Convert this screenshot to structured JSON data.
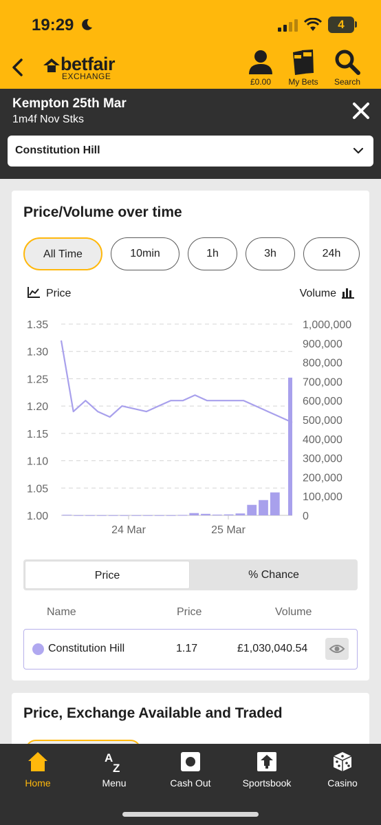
{
  "status_bar": {
    "time": "19:29",
    "battery": "4",
    "icons": [
      "moon-icon",
      "signal-icon",
      "wifi-icon",
      "battery-icon"
    ]
  },
  "header": {
    "logo_word": "betfair",
    "logo_sub": "EXCHANGE",
    "actions": [
      {
        "label": "£0.00",
        "icon": "account-icon"
      },
      {
        "label": "My Bets",
        "icon": "my-bets-icon"
      },
      {
        "label": "Search",
        "icon": "search-icon"
      }
    ]
  },
  "event": {
    "title": "Kempton 25th Mar",
    "subtitle": "1m4f Nov Stks",
    "selected_runner": "Constitution Hill"
  },
  "price_card": {
    "title": "Price/Volume over time",
    "ranges": [
      "All Time",
      "10min",
      "1h",
      "3h",
      "24h"
    ],
    "active_range": "All Time",
    "legend_price": "Price",
    "legend_volume": "Volume",
    "toggle": [
      "Price",
      "% Chance"
    ],
    "toggle_selected": "Price",
    "table_headers": {
      "name": "Name",
      "price": "Price",
      "volume": "Volume"
    },
    "runner": {
      "name": "Constitution Hill",
      "price": "1.17",
      "volume": "£1,030,040.54",
      "color": "#b0a8f0"
    }
  },
  "chart_data": {
    "type": "line",
    "price_axis": {
      "ylim": [
        1.0,
        1.35
      ],
      "ticks": [
        "1.35",
        "1.30",
        "1.25",
        "1.20",
        "1.15",
        "1.10",
        "1.05",
        "1.00"
      ]
    },
    "volume_axis": {
      "ylim": [
        0,
        1000000
      ],
      "ticks": [
        "1,000,000",
        "900,000",
        "800,000",
        "700,000",
        "600,000",
        "500,000",
        "400,000",
        "300,000",
        "200,000",
        "100,000",
        "0"
      ]
    },
    "x_ticks": [
      "24 Mar",
      "25 Mar"
    ],
    "series": [
      {
        "name": "Constitution Hill",
        "kind": "line",
        "axis": "price",
        "color": "#a8a0ec",
        "values": [
          1.32,
          1.19,
          1.21,
          1.19,
          1.18,
          1.2,
          1.195,
          1.19,
          1.2,
          1.21,
          1.21,
          1.22,
          1.21,
          1.21,
          1.21,
          1.21,
          1.2,
          1.19,
          1.18,
          1.17
        ]
      },
      {
        "kind": "bar",
        "axis": "volume",
        "color": "#a8a0ec",
        "values": [
          3000,
          1000,
          1000,
          1000,
          1000,
          1000,
          1000,
          1000,
          1000,
          1000,
          2000,
          12000,
          8000,
          4000,
          5000,
          10000,
          55000,
          80000,
          120000,
          720000
        ]
      }
    ],
    "grid": true
  },
  "second_card": {
    "title": "Price, Exchange Available and Traded"
  },
  "tabbar": [
    {
      "label": "Home",
      "icon": "home-icon",
      "active": true
    },
    {
      "label": "Menu",
      "icon": "az-menu-icon",
      "active": false
    },
    {
      "label": "Cash Out",
      "icon": "cash-out-icon",
      "active": false
    },
    {
      "label": "Sportsbook",
      "icon": "sportsbook-icon",
      "active": false
    },
    {
      "label": "Casino",
      "icon": "casino-dice-icon",
      "active": false
    }
  ]
}
